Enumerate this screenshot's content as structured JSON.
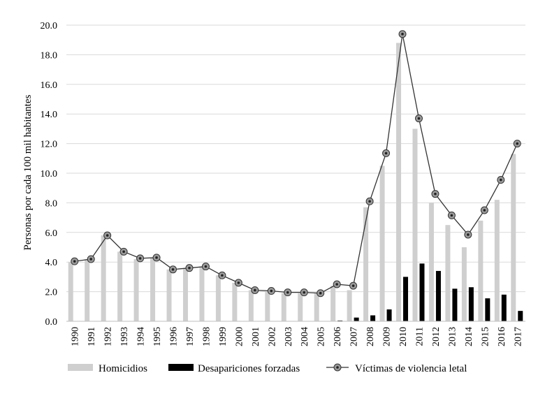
{
  "chart_data": {
    "type": "bar+line",
    "title": "",
    "xlabel": "",
    "ylabel": "Personas por cada 100 mil habitantes",
    "ylim": [
      0,
      20
    ],
    "yticks": [
      "0.0",
      "2.0",
      "4.0",
      "6.0",
      "8.0",
      "10.0",
      "12.0",
      "14.0",
      "16.0",
      "18.0",
      "20.0"
    ],
    "grid": true,
    "categories": [
      "1990",
      "1991",
      "1992",
      "1993",
      "1994",
      "1995",
      "1996",
      "1997",
      "1998",
      "1999",
      "2000",
      "2001",
      "2002",
      "2003",
      "2004",
      "2005",
      "2006",
      "2007",
      "2008",
      "2009",
      "2010",
      "2011",
      "2012",
      "2013",
      "2014",
      "2015",
      "2016",
      "2017"
    ],
    "series": [
      {
        "name": "Homicidios",
        "kind": "bar",
        "color": "#cfcfcf",
        "values": [
          4.0,
          4.2,
          5.8,
          4.7,
          4.2,
          4.3,
          3.5,
          3.6,
          3.7,
          3.1,
          2.6,
          2.1,
          2.0,
          1.9,
          1.9,
          1.9,
          2.4,
          2.1,
          7.7,
          10.5,
          18.8,
          13.0,
          8.0,
          6.5,
          5.0,
          6.8,
          8.2,
          11.3
        ]
      },
      {
        "name": "Desapariciones forzadas",
        "kind": "bar",
        "color": "#000000",
        "values": [
          0.0,
          0.0,
          0.0,
          0.0,
          0.0,
          0.0,
          0.0,
          0.0,
          0.0,
          0.0,
          0.0,
          0.0,
          0.0,
          0.0,
          0.0,
          0.0,
          0.05,
          0.25,
          0.4,
          0.8,
          3.0,
          3.9,
          3.4,
          2.2,
          2.3,
          1.55,
          1.8,
          0.7
        ]
      },
      {
        "name": "Víctimas de violencia letal",
        "kind": "line",
        "color": "#333333",
        "values": [
          4.05,
          4.2,
          5.8,
          4.7,
          4.25,
          4.3,
          3.5,
          3.6,
          3.7,
          3.1,
          2.6,
          2.1,
          2.05,
          1.95,
          1.95,
          1.9,
          2.5,
          2.4,
          8.1,
          11.35,
          19.4,
          13.7,
          8.6,
          7.15,
          5.85,
          7.5,
          9.55,
          12.0
        ]
      }
    ],
    "legend_position": "bottom"
  }
}
